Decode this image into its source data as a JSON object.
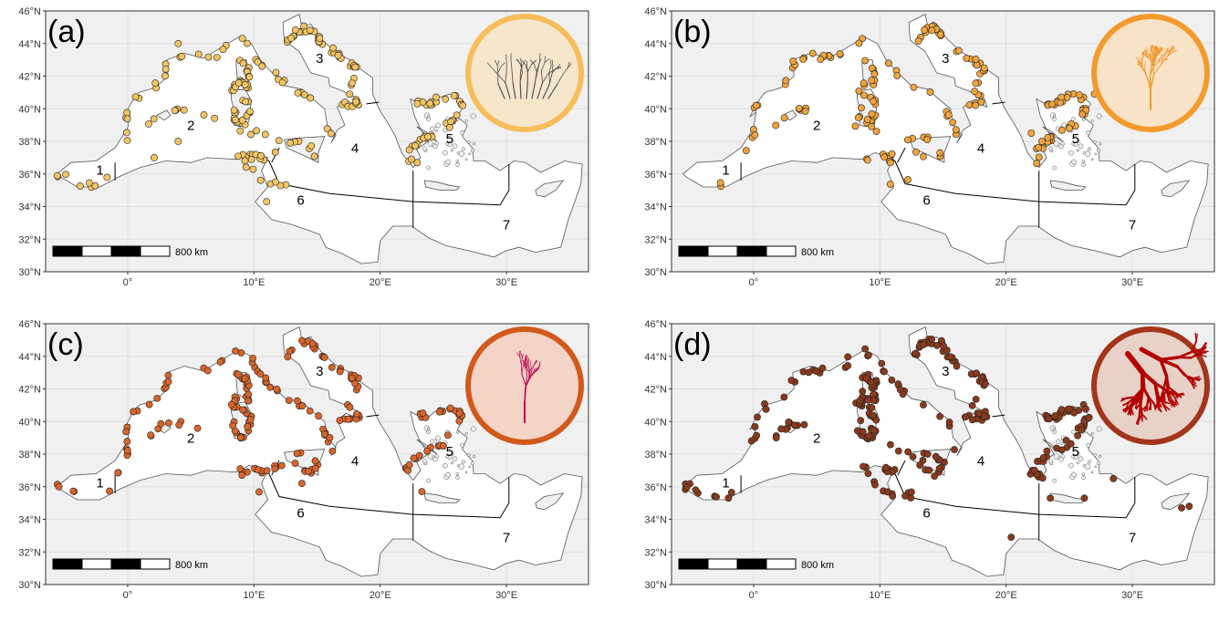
{
  "colors": {
    "sea_background": "#f0f0f0",
    "land": "#ffffff",
    "coast_stroke": "#555555",
    "grid": "#e0e0e0",
    "frame": "#333333"
  },
  "axes": {
    "x_ticks": [
      "0°",
      "10°E",
      "20°E",
      "30°E"
    ],
    "y_ticks": [
      "46°N",
      "44°N",
      "42°N",
      "40°N",
      "38°N",
      "36°N",
      "34°N",
      "32°N",
      "30°N"
    ]
  },
  "scale_bar": {
    "label": "800 km"
  },
  "regions": [
    "1",
    "2",
    "3",
    "4",
    "5",
    "6",
    "7"
  ],
  "panels": [
    {
      "label": "(a)",
      "point_color": "#f3c462",
      "circle_color": "#f7bd5a",
      "circle_fill": "#f5e6cc",
      "icon": "coral-branch-sketch-icon",
      "icon_color": "#555555"
    },
    {
      "label": "(b)",
      "point_color": "#f0a43c",
      "circle_color": "#f39a2c",
      "circle_fill": "#f9e3c8",
      "icon": "sea-fan-orange-icon",
      "icon_color": "#ef9a2e"
    },
    {
      "label": "(c)",
      "point_color": "#d9652a",
      "circle_color": "#d2591c",
      "circle_fill": "#f3d4c6",
      "icon": "red-gorgonian-icon",
      "icon_color": "#c2185b"
    },
    {
      "label": "(d)",
      "point_color": "#8a3a1c",
      "circle_color": "#a4351b",
      "circle_fill": "#e8d2c8",
      "icon": "red-coral-branch-icon",
      "icon_color": "#b30000"
    }
  ]
}
